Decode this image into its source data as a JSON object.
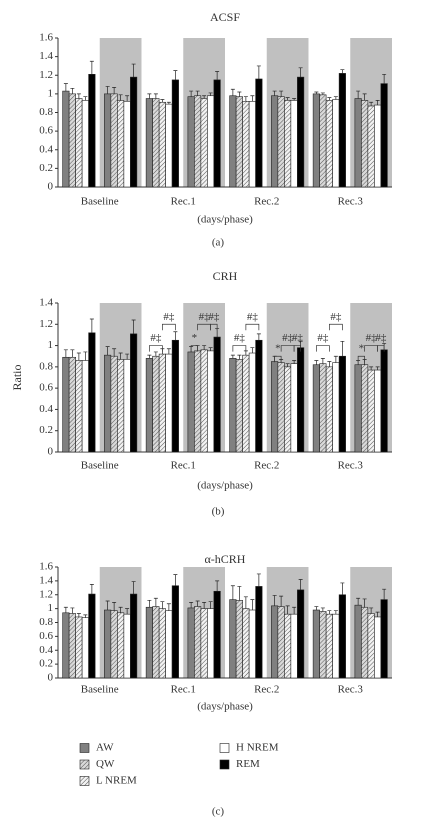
{
  "chart_data": [
    {
      "type": "bar",
      "title": "ACSF",
      "xlabel": "(days/phase)",
      "caption": "(a)",
      "shade_color": "#c0c0c0",
      "categories": [
        "Baseline",
        null,
        "Rec.1",
        null,
        "Rec.2",
        null,
        "Rec.3",
        null
      ],
      "ylim": [
        0,
        1.6
      ],
      "yticks": [
        0,
        0.2,
        0.4,
        0.6,
        0.8,
        1,
        1.2,
        1.4,
        1.6
      ],
      "series": [
        {
          "color": "#808080",
          "values": [
            1.03,
            1.0,
            0.95,
            0.97,
            0.98,
            0.98,
            1.0,
            0.95
          ],
          "errors": [
            0.08,
            0.08,
            0.05,
            0.06,
            0.07,
            0.05,
            0.02,
            0.08
          ]
        },
        {
          "color": "#d9d9d9",
          "pattern": "hatch",
          "values": [
            1.0,
            1.0,
            0.95,
            0.98,
            0.97,
            0.97,
            0.99,
            0.93
          ],
          "errors": [
            0.06,
            0.07,
            0.05,
            0.05,
            0.05,
            0.06,
            0.02,
            0.07
          ]
        },
        {
          "color": "#f2f2f2",
          "pattern": "hatch",
          "values": [
            0.95,
            0.93,
            0.91,
            0.95,
            0.92,
            0.93,
            0.93,
            0.87
          ],
          "errors": [
            0.05,
            0.06,
            0.03,
            0.03,
            0.05,
            0.03,
            0.03,
            0.04
          ]
        },
        {
          "color": "#ffffff",
          "values": [
            0.93,
            0.92,
            0.89,
            0.98,
            0.92,
            0.93,
            0.94,
            0.88
          ],
          "errors": [
            0.04,
            0.06,
            0.02,
            0.03,
            0.06,
            0.02,
            0.03,
            0.05
          ]
        },
        {
          "color": "#000000",
          "values": [
            1.21,
            1.18,
            1.15,
            1.15,
            1.16,
            1.18,
            1.22,
            1.11
          ],
          "errors": [
            0.14,
            0.14,
            0.1,
            0.09,
            0.14,
            0.1,
            0.04,
            0.1
          ]
        }
      ]
    },
    {
      "type": "bar",
      "title": "CRH",
      "ylabel": "Ratio",
      "xlabel": "(days/phase)",
      "caption": "(b)",
      "shade_color": "#c0c0c0",
      "categories": [
        "Baseline",
        null,
        "Rec.1",
        null,
        "Rec.2",
        null,
        "Rec.3",
        null
      ],
      "ylim": [
        0,
        1.4
      ],
      "yticks": [
        0,
        0.2,
        0.4,
        0.6,
        0.8,
        1,
        1.2,
        1.4
      ],
      "series": [
        {
          "color": "#808080",
          "values": [
            0.89,
            0.91,
            0.88,
            0.94,
            0.88,
            0.85,
            0.82,
            0.82
          ],
          "errors": [
            0.07,
            0.08,
            0.03,
            0.05,
            0.03,
            0.05,
            0.04,
            0.04
          ]
        },
        {
          "color": "#d9d9d9",
          "pattern": "hatch",
          "values": [
            0.89,
            0.9,
            0.9,
            0.95,
            0.87,
            0.84,
            0.83,
            0.82
          ],
          "errors": [
            0.07,
            0.07,
            0.04,
            0.05,
            0.04,
            0.03,
            0.05,
            0.05
          ]
        },
        {
          "color": "#f2f2f2",
          "pattern": "hatch",
          "values": [
            0.86,
            0.87,
            0.92,
            0.96,
            0.91,
            0.8,
            0.8,
            0.77
          ],
          "errors": [
            0.07,
            0.06,
            0.05,
            0.04,
            0.04,
            0.03,
            0.05,
            0.03
          ]
        },
        {
          "color": "#ffffff",
          "values": [
            0.86,
            0.87,
            0.92,
            0.95,
            0.93,
            0.83,
            0.84,
            0.77
          ],
          "errors": [
            0.08,
            0.05,
            0.05,
            0.03,
            0.05,
            0.03,
            0.06,
            0.03
          ]
        },
        {
          "color": "#000000",
          "values": [
            1.12,
            1.11,
            1.05,
            1.08,
            1.05,
            0.98,
            0.9,
            0.96
          ],
          "errors": [
            0.13,
            0.13,
            0.08,
            0.08,
            0.06,
            0.06,
            0.14,
            0.06
          ]
        }
      ],
      "annotations": [
        {
          "text": "#‡",
          "group": 2,
          "series": [
            0,
            2
          ],
          "y": 1.0
        },
        {
          "text": "#‡",
          "group": 2,
          "series": [
            2,
            4
          ],
          "y": 1.2
        },
        {
          "text": "*",
          "group": 3,
          "series": [
            0,
            1
          ],
          "y": 1.0
        },
        {
          "text": "#‡",
          "group": 3,
          "series": [
            1,
            3
          ],
          "y": 1.2
        },
        {
          "text": "#‡",
          "group": 3,
          "series": [
            3,
            4
          ],
          "y": 1.2
        },
        {
          "text": "#‡",
          "group": 4,
          "series": [
            0,
            2
          ],
          "y": 1.0
        },
        {
          "text": "#‡",
          "group": 4,
          "series": [
            2,
            4
          ],
          "y": 1.2
        },
        {
          "text": "*",
          "group": 5,
          "series": [
            0,
            1
          ],
          "y": 0.9
        },
        {
          "text": "#‡",
          "group": 5,
          "series": [
            1,
            3
          ],
          "y": 1.0
        },
        {
          "text": "#‡",
          "group": 5,
          "series": [
            3,
            4
          ],
          "y": 1.0
        },
        {
          "text": "#‡",
          "group": 6,
          "series": [
            0,
            2
          ],
          "y": 1.0
        },
        {
          "text": "#‡",
          "group": 6,
          "series": [
            2,
            4
          ],
          "y": 1.2
        },
        {
          "text": "*",
          "group": 7,
          "series": [
            0,
            1
          ],
          "y": 0.9
        },
        {
          "text": "#‡",
          "group": 7,
          "series": [
            1,
            3
          ],
          "y": 1.0
        },
        {
          "text": "#‡",
          "group": 7,
          "series": [
            3,
            4
          ],
          "y": 1.0
        }
      ]
    },
    {
      "type": "bar",
      "title": "α-hCRH",
      "xlabel": "(days/phase)",
      "caption": "(c)",
      "shade_color": "#c0c0c0",
      "categories": [
        "Baseline",
        null,
        "Rec.1",
        null,
        "Rec.2",
        null,
        "Rec.3",
        null
      ],
      "ylim": [
        0,
        1.6
      ],
      "yticks": [
        0,
        0.2,
        0.4,
        0.6,
        0.8,
        1,
        1.2,
        1.4,
        1.6
      ],
      "series": [
        {
          "name": "AW",
          "color": "#808080",
          "values": [
            0.94,
            0.98,
            1.02,
            1.01,
            1.13,
            1.04,
            0.98,
            1.05
          ],
          "errors": [
            0.08,
            0.13,
            0.1,
            0.08,
            0.2,
            0.15,
            0.05,
            0.1
          ]
        },
        {
          "name": "QW",
          "color": "#d9d9d9",
          "pattern": "hatch",
          "values": [
            0.93,
            0.97,
            1.03,
            1.03,
            1.12,
            1.03,
            0.96,
            1.02
          ],
          "errors": [
            0.08,
            0.12,
            0.12,
            0.08,
            0.2,
            0.15,
            0.05,
            0.12
          ]
        },
        {
          "name": "L NREM",
          "color": "#f2f2f2",
          "pattern": "hatch",
          "values": [
            0.88,
            0.94,
            1.0,
            1.0,
            1.0,
            0.92,
            0.92,
            0.93
          ],
          "errors": [
            0.05,
            0.08,
            0.1,
            0.09,
            0.17,
            0.12,
            0.05,
            0.08
          ]
        },
        {
          "name": "H NREM",
          "color": "#ffffff",
          "values": [
            0.87,
            0.92,
            0.97,
            1.0,
            0.98,
            0.92,
            0.92,
            0.88
          ],
          "errors": [
            0.04,
            0.08,
            0.1,
            0.1,
            0.15,
            0.1,
            0.05,
            0.07
          ]
        },
        {
          "name": "REM",
          "color": "#000000",
          "values": [
            1.21,
            1.21,
            1.33,
            1.25,
            1.32,
            1.27,
            1.2,
            1.13
          ],
          "errors": [
            0.14,
            0.18,
            0.16,
            0.15,
            0.18,
            0.15,
            0.17,
            0.15
          ]
        }
      ]
    }
  ]
}
